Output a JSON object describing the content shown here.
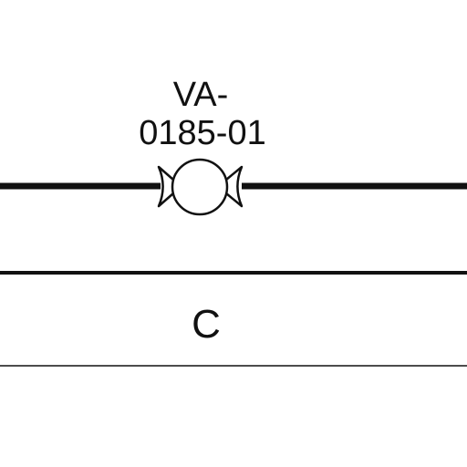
{
  "valve": {
    "tag_line_1": "VA-",
    "tag_line_2": "0185-01",
    "icon": "ball-valve-icon"
  },
  "row_label": "C",
  "colors": {
    "line": "#111111",
    "background": "#ffffff"
  }
}
